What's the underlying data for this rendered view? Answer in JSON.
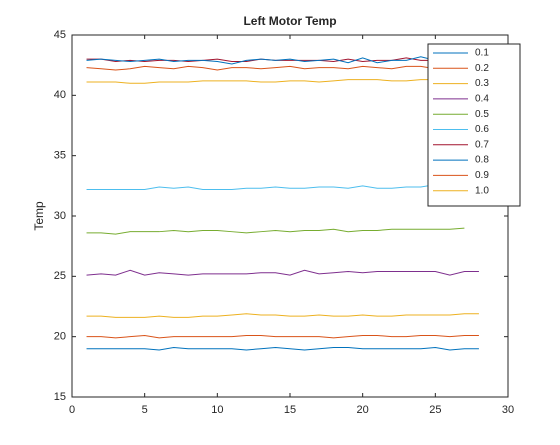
{
  "chart_data": {
    "type": "line",
    "title": "Left Motor Temp",
    "y_label": "Temp",
    "x": [
      1,
      2,
      3,
      4,
      5,
      6,
      7,
      8,
      9,
      10,
      11,
      12,
      13,
      14,
      15,
      16,
      17,
      18,
      19,
      20,
      21,
      22,
      23,
      24,
      25,
      26,
      27,
      28
    ],
    "xlim": [
      0,
      30
    ],
    "xticks": [
      0,
      5,
      10,
      15,
      20,
      25,
      30
    ],
    "ylim": [
      15,
      45
    ],
    "yticks": [
      15,
      20,
      25,
      30,
      35,
      40,
      45
    ],
    "grid": false,
    "legend": "upper right",
    "series": [
      {
        "name": "0.1",
        "color": "#0072BD",
        "values": [
          19,
          19,
          19,
          19,
          19,
          18.9,
          19.1,
          19,
          19,
          19,
          19,
          18.9,
          19,
          19.1,
          19,
          18.9,
          19,
          19.1,
          19.1,
          19,
          19,
          19,
          19,
          19,
          19.1,
          18.9,
          19,
          19
        ]
      },
      {
        "name": "0.2",
        "color": "#D95319",
        "values": [
          20,
          20,
          19.9,
          20,
          20.1,
          19.9,
          20,
          20,
          20,
          20,
          20,
          20.1,
          20.1,
          20,
          20,
          20,
          20,
          19.9,
          20,
          20.1,
          20.1,
          20,
          20,
          20.1,
          20.1,
          20,
          20.1,
          20.1
        ]
      },
      {
        "name": "0.3",
        "color": "#EDB120",
        "values": [
          21.7,
          21.7,
          21.6,
          21.6,
          21.6,
          21.7,
          21.6,
          21.6,
          21.7,
          21.7,
          21.8,
          21.9,
          21.8,
          21.8,
          21.7,
          21.7,
          21.8,
          21.7,
          21.7,
          21.8,
          21.7,
          21.7,
          21.8,
          21.8,
          21.8,
          21.8,
          21.9,
          21.9
        ]
      },
      {
        "name": "0.4",
        "color": "#7E2F8E",
        "values": [
          25.1,
          25.2,
          25.1,
          25.5,
          25.1,
          25.3,
          25.2,
          25.1,
          25.2,
          25.2,
          25.2,
          25.2,
          25.3,
          25.3,
          25.1,
          25.5,
          25.2,
          25.3,
          25.4,
          25.3,
          25.4,
          25.4,
          25.4,
          25.4,
          25.4,
          25.1,
          25.4,
          25.4
        ]
      },
      {
        "name": "0.5",
        "color": "#77AC30",
        "values": [
          28.6,
          28.6,
          28.5,
          28.7,
          28.7,
          28.7,
          28.8,
          28.7,
          28.8,
          28.8,
          28.7,
          28.6,
          28.7,
          28.8,
          28.7,
          28.8,
          28.8,
          28.9,
          28.7,
          28.8,
          28.8,
          28.9,
          28.9,
          28.9,
          28.9,
          28.9,
          29.0,
          null
        ]
      },
      {
        "name": "0.6",
        "color": "#4DBEEE",
        "values": [
          32.2,
          32.2,
          32.2,
          32.2,
          32.2,
          32.4,
          32.3,
          32.4,
          32.2,
          32.2,
          32.2,
          32.3,
          32.3,
          32.4,
          32.3,
          32.3,
          32.4,
          32.4,
          32.3,
          32.5,
          32.3,
          32.3,
          32.4,
          32.4,
          32.6,
          32.6,
          32.6,
          32.6
        ]
      },
      {
        "name": "0.7",
        "color": "#A2142F",
        "values": [
          43,
          43,
          42.8,
          42.9,
          42.8,
          42.9,
          42.9,
          42.8,
          42.9,
          43,
          42.8,
          42.8,
          43,
          42.9,
          42.9,
          42.9,
          42.9,
          42.8,
          43,
          42.8,
          42.9,
          42.9,
          43.1,
          42.9,
          42.9,
          42.8,
          42.9,
          42.9
        ]
      },
      {
        "name": "0.8",
        "color": "#0072BD",
        "values": [
          42.9,
          43,
          42.9,
          42.8,
          42.9,
          43,
          42.8,
          42.9,
          42.9,
          42.8,
          42.6,
          42.9,
          43,
          42.9,
          43,
          42.8,
          42.9,
          43,
          42.7,
          43.1,
          42.7,
          42.9,
          42.9,
          43.2,
          42.9,
          42.9,
          42.8,
          42.8
        ]
      },
      {
        "name": "0.9",
        "color": "#D95319",
        "values": [
          42.3,
          42.2,
          42.1,
          42.2,
          42.4,
          42.3,
          42.2,
          42.4,
          42.3,
          42.1,
          42.3,
          42.3,
          42.2,
          42.3,
          42.4,
          42.2,
          42.3,
          42.3,
          42.2,
          42.4,
          42.3,
          42.2,
          42.4,
          42.4,
          42.2,
          42.3,
          42.3,
          42.3
        ]
      },
      {
        "name": "1.0",
        "color": "#EDB120",
        "values": [
          41.1,
          41.1,
          41.1,
          41.0,
          41.0,
          41.1,
          41.1,
          41.1,
          41.2,
          41.2,
          41.2,
          41.2,
          41.1,
          41.1,
          41.2,
          41.2,
          41.1,
          41.2,
          41.3,
          41.3,
          41.3,
          41.2,
          41.2,
          41.3,
          41.3,
          41.3,
          41.3,
          41.3
        ]
      }
    ]
  }
}
